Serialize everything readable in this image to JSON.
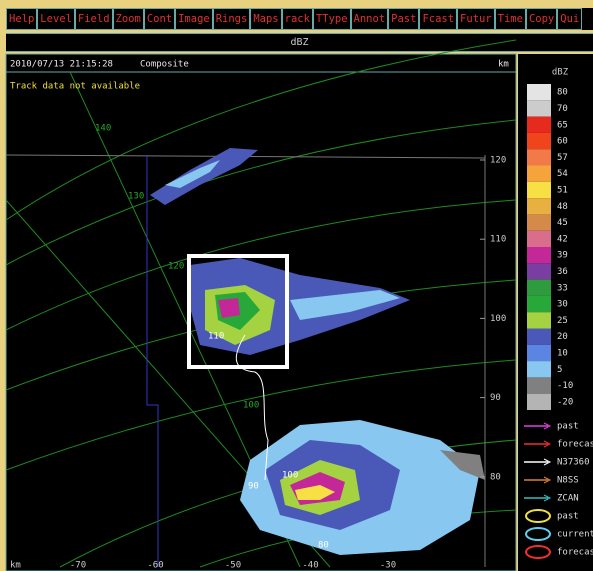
{
  "menu": [
    "Help",
    "Level",
    "Field",
    "Zoom",
    "Cont",
    "Image",
    "Rings",
    "Maps",
    "rack",
    "TType",
    "Annot",
    "Past",
    "Fcast",
    "Futur",
    "Time",
    "Copy",
    "Qui"
  ],
  "field_bar": "dBZ",
  "display": {
    "timestamp": "2010/07/13 21:15:28",
    "product": "Composite",
    "unit_top": "km",
    "status": "Track data not available",
    "ring_labels": [
      "140",
      "130",
      "120",
      "100"
    ],
    "y_labels": [
      "120",
      "110",
      "100",
      "90",
      "80"
    ],
    "x_unit": "km",
    "x_labels": [
      "-70",
      "-60",
      "-50",
      "-40",
      "-30"
    ],
    "track_labels": [
      "110",
      "90",
      "100",
      "80"
    ]
  },
  "legend": {
    "title": "dBZ",
    "scale": [
      {
        "label": "80",
        "color": "#e4e4e4"
      },
      {
        "label": "70",
        "color": "#cccccc"
      },
      {
        "label": "65",
        "color": "#e62a1e"
      },
      {
        "label": "60",
        "color": "#f0441c"
      },
      {
        "label": "57",
        "color": "#f27a48"
      },
      {
        "label": "54",
        "color": "#f4a43a"
      },
      {
        "label": "51",
        "color": "#f6e044"
      },
      {
        "label": "48",
        "color": "#e8b040"
      },
      {
        "label": "45",
        "color": "#d48a48"
      },
      {
        "label": "42",
        "color": "#d86e8c"
      },
      {
        "label": "39",
        "color": "#c42898"
      },
      {
        "label": "36",
        "color": "#7a3ea2"
      },
      {
        "label": "33",
        "color": "#2e9c3e"
      },
      {
        "label": "30",
        "color": "#28a838"
      },
      {
        "label": "25",
        "color": "#a4d240"
      },
      {
        "label": "20",
        "color": "#4a58b8"
      },
      {
        "label": "10",
        "color": "#5c84e2"
      },
      {
        "label": "5",
        "color": "#88c8f0"
      },
      {
        "label": "-10",
        "color": "#808080"
      },
      {
        "label": "-20",
        "color": "#b4b4b4"
      }
    ],
    "tracks": [
      {
        "label": "past",
        "color": "#e040e0"
      },
      {
        "label": "forecas",
        "color": "#f03030"
      },
      {
        "label": "N37360",
        "color": "#ffffff"
      },
      {
        "label": "N8SS",
        "color": "#e08030"
      },
      {
        "label": "ZCAN",
        "color": "#30c0c0"
      }
    ],
    "cells": [
      {
        "label": "past",
        "color": "#f0e040"
      },
      {
        "label": "current",
        "color": "#60d0f0"
      },
      {
        "label": "forecas",
        "color": "#f03030"
      }
    ]
  }
}
